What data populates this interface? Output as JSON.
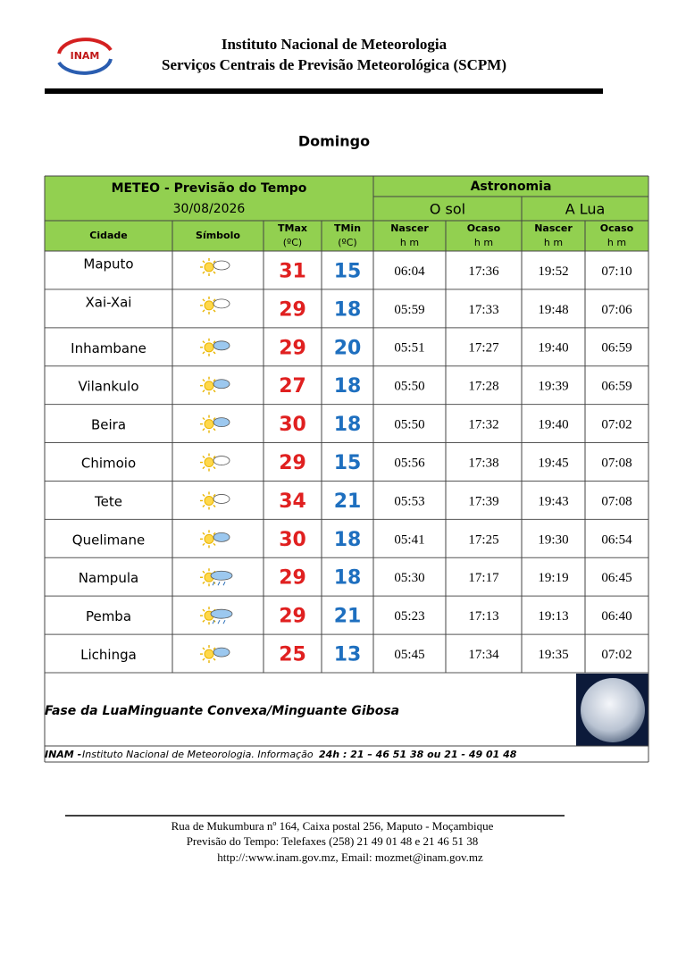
{
  "header": {
    "logo": "INAM",
    "organization": "Instituto Nacional de Meteorologia",
    "department": "Serviços Centrais de Previsão Meteorológica (SCPM)"
  },
  "day": "Domingo",
  "table": {
    "title": "METEO - Previsão do Tempo",
    "date": "30/08/2026",
    "astronomy": "Astronomia",
    "sun": "O sol",
    "moon": "A Lua",
    "columns": [
      [
        "Cidade"
      ],
      [
        "Símbolo"
      ],
      [
        "TMax",
        "(ºC)"
      ],
      [
        "TMin",
        "(ºC)"
      ],
      [
        "Nascer",
        "h m"
      ],
      [
        "Ocaso",
        "h m"
      ],
      [
        "Nascer",
        "h m"
      ],
      [
        "Ocaso",
        "h m"
      ]
    ],
    "rows": [
      [
        "Maputo",
        31,
        15,
        "06:04",
        "17:36",
        "19:52",
        "07:10"
      ],
      [
        "Xai-Xai",
        29,
        18,
        "05:59",
        "17:33",
        "19:48",
        "07:06"
      ],
      [
        "Inhambane",
        29,
        20,
        "05:51",
        "17:27",
        "19:40",
        "06:59"
      ],
      [
        "Vilankulo",
        27,
        18,
        "05:50",
        "17:28",
        "19:39",
        "06:59"
      ],
      [
        "Beira",
        30,
        18,
        "05:50",
        "17:32",
        "19:40",
        "07:02"
      ],
      [
        "Chimoio",
        29,
        15,
        "05:56",
        "17:38",
        "19:45",
        "07:08"
      ],
      [
        "Tete",
        34,
        21,
        "05:53",
        "17:39",
        "19:43",
        "07:08"
      ],
      [
        "Quelimane",
        30,
        18,
        "05:41",
        "17:25",
        "19:30",
        "06:54"
      ],
      [
        "Nampula",
        29,
        18,
        "05:30",
        "17:17",
        "19:19",
        "06:45"
      ],
      [
        "Pemba",
        29,
        21,
        "05:23",
        "17:13",
        "19:13",
        "06:40"
      ],
      [
        "Lichinga",
        25,
        13,
        "05:45",
        "17:34",
        "19:35",
        "07:02"
      ]
    ],
    "moon_phase_label": "Fase da Lua:",
    "moon_phase": "Minguante Convexa/Minguante Gibosa",
    "info": {
      "org": "INAM -",
      "text": "Instituto Nacional de Meteorologia. Informação",
      "phone": "24h : 21 – 46 51 38 ou 21 - 49 01 48"
    }
  },
  "footer": [
    "Rua de Mukumbura nº 164, Caixa postal  256, Maputo -  Moçambique",
    "Previsão do Tempo: Telefaxes (258) 21 49 01 48 e  21 46 51 38",
    "http://:www.inam.gov.mz, Email: mozmet@inam.gov.mz"
  ]
}
